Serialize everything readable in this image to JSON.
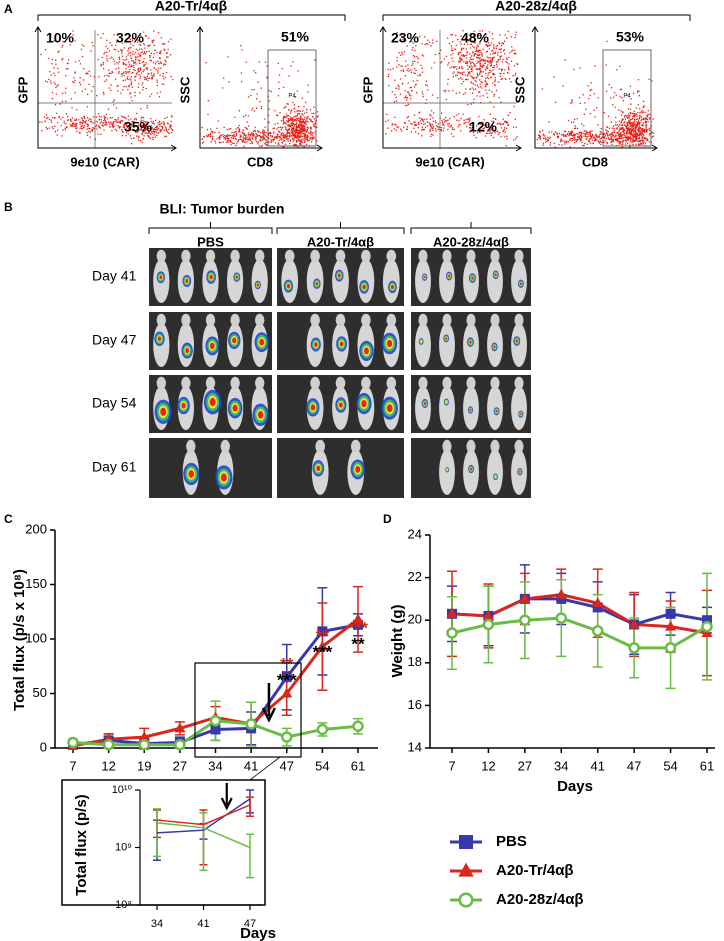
{
  "panel_a": {
    "label": "A",
    "groups": [
      {
        "title": "A20-Tr/4αβ",
        "gfp_plot": {
          "y_label": "GFP",
          "x_label": "9e10 (CAR)",
          "quadrants": [
            "10%",
            "32%",
            "35%"
          ]
        },
        "cd8_plot": {
          "y_label": "SSC",
          "x_label": "CD8",
          "gate_name": "P4",
          "gate": "51%"
        }
      },
      {
        "title": "A20-28z/4αβ",
        "gfp_plot": {
          "y_label": "GFP",
          "x_label": "9e10 (CAR)",
          "quadrants": [
            "23%",
            "48%",
            "12%"
          ]
        },
        "cd8_plot": {
          "y_label": "SSC",
          "x_label": "CD8",
          "gate_name": "P4",
          "gate": "53%"
        }
      }
    ]
  },
  "panel_b": {
    "label": "B",
    "title": "BLI: Tumor burden",
    "groups": [
      "PBS",
      "A20-Tr/4αβ",
      "A20-28z/4αβ"
    ],
    "days": [
      "Day 41",
      "Day 47",
      "Day 54",
      "Day 61"
    ]
  },
  "chart_data": [
    {
      "type": "line",
      "panel": "C",
      "ylabel": "Total flux (p/s x 10⁸)",
      "categories": [
        "7",
        "12",
        "19",
        "27",
        "34",
        "41",
        "47",
        "54",
        "61"
      ],
      "ylim": [
        0,
        200
      ],
      "yticks": [
        0,
        50,
        100,
        150,
        200
      ],
      "series": [
        {
          "name": "PBS",
          "color": "#3838a8",
          "marker": "square",
          "values": [
            3,
            7,
            4,
            5,
            17,
            18,
            65,
            107,
            113
          ],
          "errors": [
            3,
            6,
            5,
            5,
            10,
            15,
            30,
            40,
            10
          ]
        },
        {
          "name": "A20-Tr/4αβ",
          "color": "#d8271c",
          "marker": "triangle",
          "values": [
            2,
            8,
            10,
            18,
            28,
            22,
            50,
            93,
            118
          ],
          "errors": [
            2,
            5,
            8,
            6,
            10,
            20,
            20,
            40,
            30
          ]
        },
        {
          "name": "A20-28z/4αβ",
          "color": "#69bd45",
          "marker": "circle",
          "values": [
            5,
            3,
            3,
            3,
            25,
            22,
            10,
            17,
            20
          ],
          "errors": [
            3,
            3,
            3,
            3,
            18,
            20,
            8,
            6,
            7
          ]
        }
      ],
      "annotations": [
        {
          "text": "**",
          "color": "#c8281e"
        },
        {
          "text": "***",
          "color": "#000000"
        },
        {
          "text": "**",
          "color": "#c8281e"
        },
        {
          "text": "***",
          "color": "#000000"
        },
        {
          "text": "***",
          "color": "#c8281e"
        },
        {
          "text": "**",
          "color": "#000000"
        }
      ]
    },
    {
      "type": "line",
      "log_scale": true,
      "xlabel": "Days",
      "ylabel": "Total flux (p/s)",
      "categories": [
        "34",
        "41",
        "47"
      ],
      "ylim": [
        100000000,
        10000000000
      ],
      "yticks": [
        {
          "value": 100000000,
          "label": "10⁸"
        },
        {
          "value": 1000000000,
          "label": "10⁹"
        },
        {
          "value": 10000000000,
          "label": "10¹⁰"
        }
      ],
      "series": [
        {
          "color": "#3838a8",
          "values": [
            1800000000,
            2000000000,
            7000000000
          ],
          "errors": [
            1200000000,
            600000000,
            3000000000
          ]
        },
        {
          "color": "#d8271c",
          "values": [
            3000000000,
            2500000000,
            5500000000
          ],
          "errors": [
            1500000000,
            2000000000,
            2000000000
          ]
        },
        {
          "color": "#69bd45",
          "values": [
            2700000000,
            2200000000,
            1000000000
          ],
          "errors": [
            2000000000,
            1800000000,
            700000000
          ]
        }
      ]
    },
    {
      "type": "line",
      "panel": "D",
      "xlabel": "Days",
      "ylabel": "Weight (g)",
      "categories": [
        "7",
        "12",
        "27",
        "34",
        "41",
        "47",
        "54",
        "61"
      ],
      "ylim": [
        14,
        24
      ],
      "yticks": [
        14,
        16,
        18,
        20,
        22,
        24
      ],
      "series": [
        {
          "color": "#3838a8",
          "marker": "square",
          "values": [
            20.3,
            20.2,
            21.0,
            21.0,
            20.6,
            19.8,
            20.3,
            20.0
          ],
          "errors": [
            1.3,
            1.4,
            1.6,
            1.2,
            1.2,
            1.4,
            1.0,
            0.6
          ]
        },
        {
          "color": "#d8271c",
          "marker": "triangle",
          "values": [
            20.3,
            20.2,
            21.0,
            21.2,
            20.8,
            19.8,
            19.7,
            19.4
          ],
          "errors": [
            2.0,
            1.5,
            1.2,
            1.2,
            1.6,
            1.5,
            1.2,
            2.0
          ]
        },
        {
          "color": "#69bd45",
          "marker": "circle",
          "values": [
            19.4,
            19.8,
            20.0,
            20.1,
            19.5,
            18.7,
            18.7,
            19.7
          ],
          "errors": [
            1.7,
            1.8,
            1.8,
            1.8,
            1.7,
            1.4,
            1.9,
            2.5
          ]
        }
      ]
    }
  ]
}
